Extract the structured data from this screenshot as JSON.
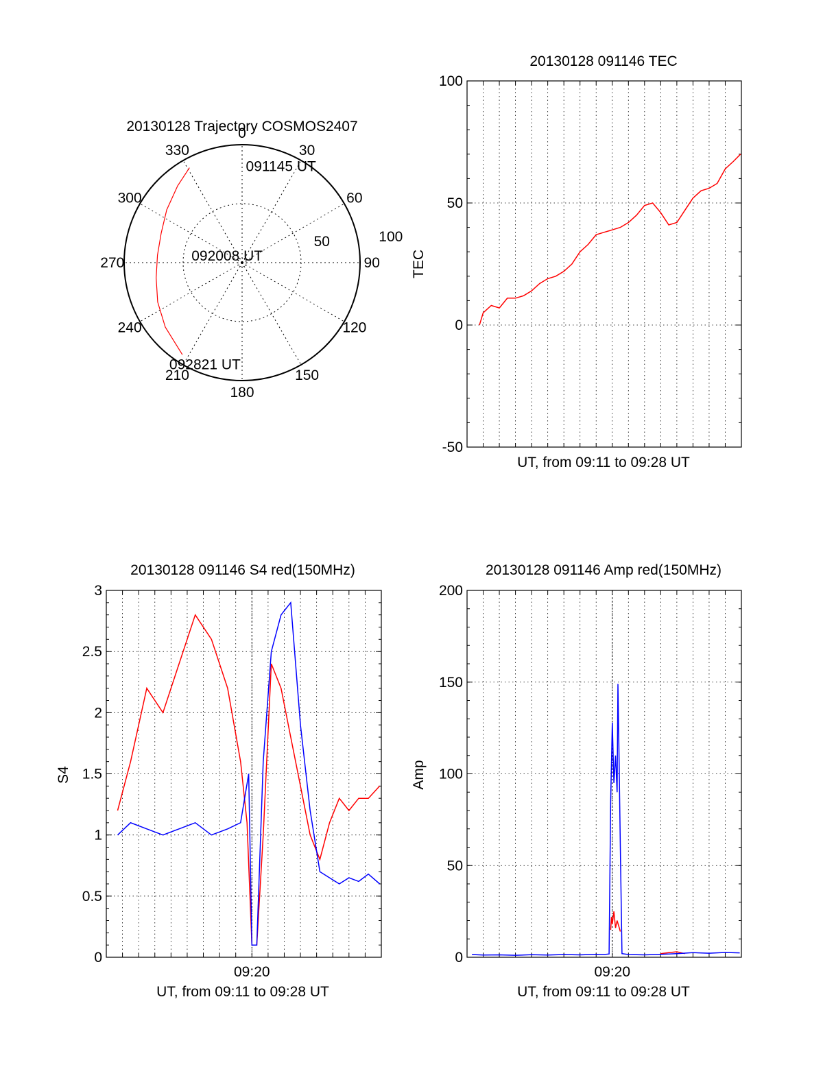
{
  "colors": {
    "red": "#ff0000",
    "blue": "#0000ff",
    "axis": "#000000",
    "grid": "#000000"
  },
  "chart_data": [
    {
      "id": "polar",
      "type": "scatter",
      "title": "20130128 Trajectory COSMOS2407",
      "projection": "polar",
      "angular_ticks": [
        "0",
        "30",
        "60",
        "90",
        "120",
        "150",
        "180",
        "210",
        "240",
        "270",
        "300",
        "330"
      ],
      "radial_ticks": [
        "50",
        "100"
      ],
      "radial_max": 100,
      "grid": "dotted",
      "labels": [
        {
          "text": "091145 UT",
          "az": 22,
          "r": 88
        },
        {
          "text": "092008 UT",
          "az": 295,
          "r": 14
        },
        {
          "text": "092821 UT",
          "az": 200,
          "r": 92
        }
      ],
      "series": [
        {
          "color": "#ff0000",
          "points": [
            [
              331,
              92
            ],
            [
              320,
              85
            ],
            [
              305,
              78
            ],
            [
              290,
              73
            ],
            [
              275,
              72
            ],
            [
              260,
              74
            ],
            [
              245,
              79
            ],
            [
              230,
              85
            ],
            [
              213,
              93
            ]
          ]
        }
      ]
    },
    {
      "id": "tec",
      "type": "line",
      "title": "20130128 091146 TEC",
      "xlabel": "UT, from 09:11 to 09:28 UT",
      "ylabel": "TEC",
      "ylim": [
        -50,
        100
      ],
      "yticks": [
        "-50",
        "0",
        "50",
        "100"
      ],
      "xlim_min": [
        11.0,
        28.0
      ],
      "xticks": [],
      "grid": true,
      "series": [
        {
          "color": "#ff0000",
          "x": [
            11.77,
            12.0,
            12.5,
            13.0,
            13.5,
            14.0,
            14.5,
            15.0,
            15.5,
            16.0,
            16.5,
            17.0,
            17.5,
            18.0,
            18.5,
            19.0,
            19.5,
            20.0,
            20.5,
            21.0,
            21.5,
            22.0,
            22.5,
            23.0,
            23.5,
            24.0,
            24.5,
            25.0,
            25.5,
            26.0,
            26.5,
            27.0,
            27.5,
            27.95
          ],
          "y": [
            0,
            5,
            8,
            7,
            11,
            11,
            12,
            14,
            17,
            19,
            20,
            22,
            25,
            30,
            33,
            37,
            38,
            39,
            40,
            42,
            45,
            49,
            50,
            46,
            41,
            42,
            47,
            52,
            55,
            56,
            58,
            64,
            67,
            70
          ]
        }
      ]
    },
    {
      "id": "s4",
      "type": "line",
      "title": "20130128 091146 S4 red(150MHz)",
      "xlabel": "UT, from 09:11 to 09:28 UT",
      "ylabel": "S4",
      "ylim": [
        0,
        3
      ],
      "yticks": [
        "0",
        "0.5",
        "1",
        "1.5",
        "2",
        "2.5",
        "3"
      ],
      "xlim_min": [
        11.0,
        28.0
      ],
      "xticks": [
        {
          "label": "09:20",
          "value": 20.0
        }
      ],
      "grid": true,
      "series": [
        {
          "name": "red",
          "color": "#ff0000",
          "x": [
            11.7,
            12.5,
            13.5,
            14.5,
            15.5,
            16.5,
            17.5,
            18.5,
            19.3,
            19.7,
            20.0,
            20.3,
            20.7,
            21.2,
            21.8,
            22.4,
            23.0,
            23.6,
            24.2,
            24.8,
            25.4,
            26.0,
            26.6,
            27.2,
            27.9
          ],
          "y": [
            1.2,
            1.6,
            2.2,
            2.0,
            2.4,
            2.8,
            2.6,
            2.2,
            1.6,
            1.1,
            0.1,
            0.1,
            1.0,
            2.4,
            2.2,
            1.8,
            1.4,
            1.0,
            0.8,
            1.1,
            1.3,
            1.2,
            1.3,
            1.3,
            1.4
          ]
        },
        {
          "name": "blue",
          "color": "#0000ff",
          "x": [
            11.7,
            12.5,
            13.5,
            14.5,
            15.5,
            16.5,
            17.5,
            18.5,
            19.3,
            19.8,
            20.0,
            20.3,
            20.7,
            21.2,
            21.8,
            22.4,
            23.0,
            23.6,
            24.2,
            24.8,
            25.4,
            26.0,
            26.6,
            27.2,
            27.9
          ],
          "y": [
            1.0,
            1.1,
            1.05,
            1.0,
            1.05,
            1.1,
            1.0,
            1.05,
            1.1,
            1.5,
            0.1,
            0.1,
            1.6,
            2.5,
            2.8,
            2.9,
            1.9,
            1.2,
            0.7,
            0.65,
            0.6,
            0.65,
            0.62,
            0.68,
            0.6
          ]
        }
      ]
    },
    {
      "id": "amp",
      "type": "line",
      "title": "20130128 091146 Amp red(150MHz)",
      "xlabel": "UT, from 09:11 to 09:28 UT",
      "ylabel": "Amp",
      "ylim": [
        0,
        200
      ],
      "yticks": [
        "0",
        "50",
        "100",
        "150",
        "200"
      ],
      "xlim_min": [
        11.0,
        28.0
      ],
      "xticks": [
        {
          "label": "09:20",
          "value": 20.0
        }
      ],
      "grid": true,
      "series": [
        {
          "name": "red",
          "color": "#ff0000",
          "x": [
            19.9,
            19.95,
            20.0,
            20.1,
            20.2,
            20.3,
            20.4,
            20.5
          ],
          "y": [
            15,
            22,
            18,
            25,
            16,
            20,
            17,
            14
          ]
        },
        {
          "name": "red-late",
          "color": "#ff0000",
          "x": [
            23.0,
            23.5,
            24.0,
            24.5
          ],
          "y": [
            2,
            2.5,
            3,
            2
          ]
        },
        {
          "name": "blue",
          "color": "#0000ff",
          "x": [
            11.3,
            12.0,
            13.0,
            14.0,
            15.0,
            16.0,
            17.0,
            18.0,
            19.0,
            19.5,
            19.8,
            19.9,
            20.0,
            20.1,
            20.2,
            20.3,
            20.35,
            20.4,
            20.5,
            20.6,
            21.0,
            22.0,
            23.0,
            24.0,
            25.0,
            26.0,
            27.0,
            27.9
          ],
          "y": [
            1.5,
            1.2,
            1.3,
            1.1,
            1.4,
            1.2,
            1.5,
            1.3,
            1.6,
            1.5,
            1.8,
            85,
            128,
            95,
            110,
            90,
            149,
            120,
            60,
            2,
            1.5,
            1.3,
            1.6,
            2,
            2.5,
            2.2,
            2.6,
            2.4
          ]
        }
      ]
    }
  ]
}
